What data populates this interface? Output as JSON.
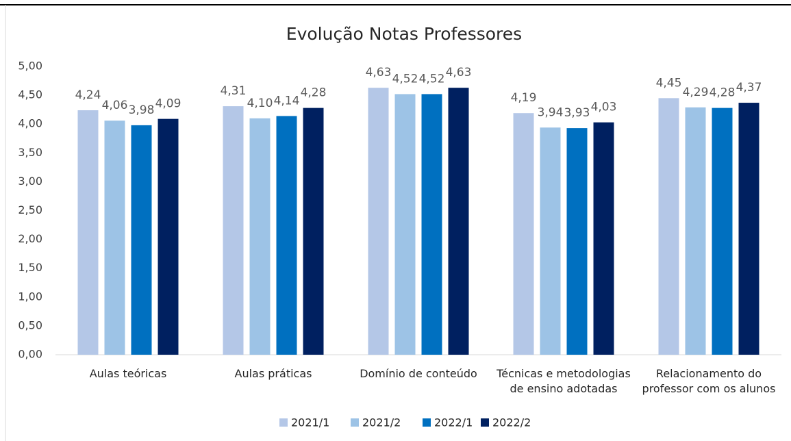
{
  "chart_data": {
    "type": "bar",
    "title": "Evolução Notas Professores",
    "categories": [
      "Aulas teóricas",
      "Aulas práticas",
      "Domínio de conteúdo",
      "Técnicas e metodologias\nde ensino adotadas",
      "Relacionamento do\nprofessor com os alunos"
    ],
    "series": [
      {
        "name": "2021/1",
        "color": "#b4c7e7",
        "values": [
          4.24,
          4.31,
          4.63,
          4.19,
          4.45
        ],
        "value_labels": [
          "4,24",
          "4,31",
          "4,63",
          "4,19",
          "4,45"
        ]
      },
      {
        "name": "2021/2",
        "color": "#9dc3e6",
        "values": [
          4.06,
          4.1,
          4.52,
          3.94,
          4.29
        ],
        "value_labels": [
          "4,06",
          "4,10",
          "4,52",
          "3,94",
          "4,29"
        ]
      },
      {
        "name": "2022/1",
        "color": "#0070c0",
        "values": [
          3.98,
          4.14,
          4.52,
          3.93,
          4.28
        ],
        "value_labels": [
          "3,98",
          "4,14",
          "4,52",
          "3,93",
          "4,28"
        ]
      },
      {
        "name": "2022/2",
        "color": "#002060",
        "values": [
          4.09,
          4.28,
          4.63,
          4.03,
          4.37
        ],
        "value_labels": [
          "4,09",
          "4,28",
          "4,63",
          "4,03",
          "4,37"
        ]
      }
    ],
    "ylim": [
      0,
      5
    ],
    "yticks": [
      {
        "value": 0,
        "label": "0,00"
      },
      {
        "value": 0.5,
        "label": "0,50"
      },
      {
        "value": 1,
        "label": "1,00"
      },
      {
        "value": 1.5,
        "label": "1,50"
      },
      {
        "value": 2,
        "label": "2,00"
      },
      {
        "value": 2.5,
        "label": "2,50"
      },
      {
        "value": 3,
        "label": "3,00"
      },
      {
        "value": 3.5,
        "label": "3,50"
      },
      {
        "value": 4,
        "label": "4,00"
      },
      {
        "value": 4.5,
        "label": "4,50"
      },
      {
        "value": 5,
        "label": "5,00"
      }
    ],
    "legend": "bottom"
  }
}
